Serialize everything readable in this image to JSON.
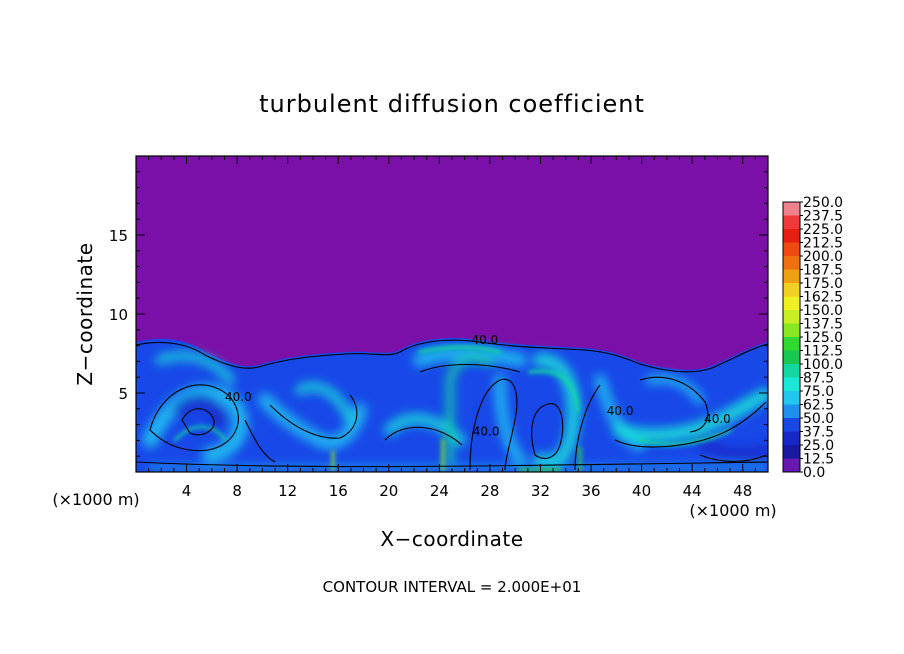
{
  "chart_data": {
    "type": "heatmap",
    "title": "turbulent diffusion coefficient",
    "xlabel": "X−coordinate",
    "ylabel": "Z−coordinate",
    "x_unit": "(×1000 m)",
    "z_unit": "(×1000 m)",
    "xlim": [
      0,
      50
    ],
    "ylim": [
      0,
      20
    ],
    "x_ticks": [
      4,
      8,
      12,
      16,
      20,
      24,
      28,
      32,
      36,
      40,
      44,
      48
    ],
    "y_ticks": [
      5,
      10,
      15
    ],
    "colorbar": {
      "levels": [
        "250.0",
        "237.5",
        "225.0",
        "212.5",
        "200.0",
        "187.5",
        "175.0",
        "162.5",
        "150.0",
        "137.5",
        "125.0",
        "112.5",
        "100.0",
        "87.5",
        "75.0",
        "62.5",
        "50.0",
        "37.5",
        "25.0",
        "12.5",
        "0.0"
      ],
      "colors": [
        "#f0808a",
        "#f03a3a",
        "#e81e12",
        "#f04a10",
        "#f07010",
        "#f0a010",
        "#f0d020",
        "#f0f020",
        "#c8f020",
        "#88e820",
        "#30d830",
        "#18c850",
        "#10d8a0",
        "#18e8d8",
        "#20c8f0",
        "#2090f0",
        "#1848e8",
        "#1828c8",
        "#1818a0",
        "#6818b0"
      ],
      "background_color": "#7a10a8"
    },
    "contour_labels": [
      {
        "text": "40.0",
        "x": 27.6,
        "z": 8.1
      },
      {
        "text": "40.0",
        "x": 8.1,
        "z": 4.5
      },
      {
        "text": "40.0",
        "x": 27.7,
        "z": 2.3
      },
      {
        "text": "40.0",
        "x": 38.3,
        "z": 3.6
      },
      {
        "text": "40.0",
        "x": 46.0,
        "z": 3.1
      }
    ],
    "contour_interval_label": "CONTOUR INTERVAL = ",
    "contour_interval": "2.000E+01"
  }
}
